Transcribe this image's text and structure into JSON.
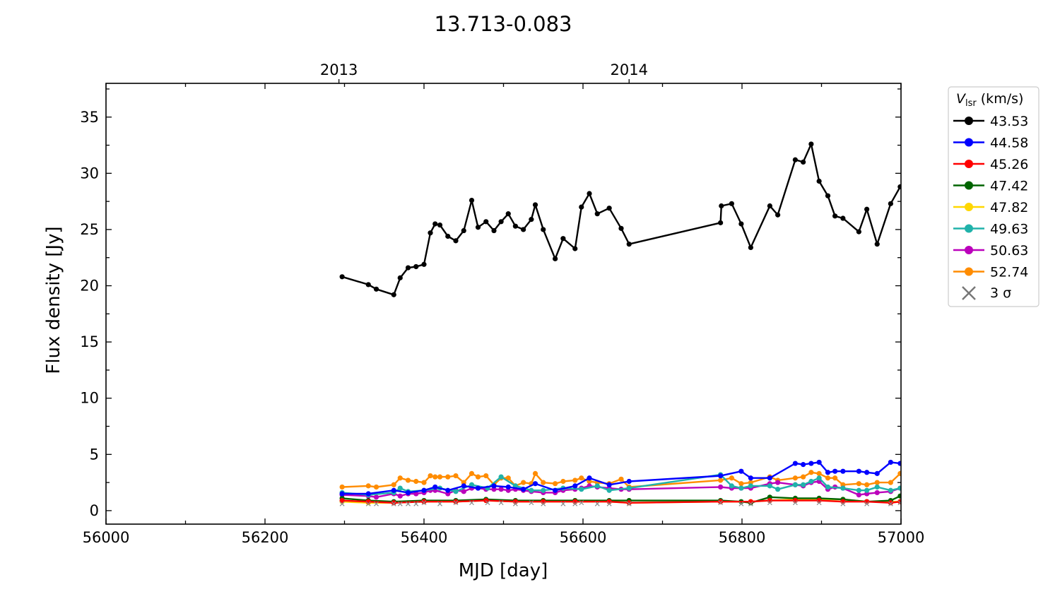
{
  "chart_data": {
    "type": "line",
    "title": "13.713-0.083",
    "xlabel": "MJD [day]",
    "ylabel": "Flux density [Jy]",
    "xlim": [
      56000,
      57000
    ],
    "ylim": [
      -1.2,
      38
    ],
    "x_ticks": [
      56000,
      56200,
      56400,
      56600,
      56800,
      57000
    ],
    "y_ticks": [
      0,
      5,
      10,
      15,
      20,
      25,
      30,
      35
    ],
    "top_axis_ticks": [
      {
        "label": "2013",
        "mjd": 56293
      },
      {
        "label": "2014",
        "mjd": 56658
      }
    ],
    "grid": false,
    "legend": {
      "title_main": "V",
      "title_sub": "lsr",
      "title_unit": " (km/s)",
      "placement": "outside right",
      "sigma_label": "3 σ"
    },
    "series": [
      {
        "name": "43.53",
        "color": "#000000",
        "x": [
          56297,
          56330,
          56340,
          56362,
          56370,
          56380,
          56390,
          56400,
          56408,
          56414,
          56420,
          56430,
          56440,
          56450,
          56460,
          56468,
          56478,
          56488,
          56497,
          56506,
          56515,
          56525,
          56535,
          56540,
          56550,
          56565,
          56575,
          56590,
          56598,
          56608,
          56618,
          56633,
          56648,
          56658,
          56773,
          56774,
          56787,
          56799,
          56811,
          56835,
          56845,
          56867,
          56877,
          56887,
          56897,
          56908,
          56917,
          56927,
          56947,
          56957,
          56970,
          56987,
          56999
        ],
        "y": [
          20.8,
          20.1,
          19.7,
          19.2,
          20.7,
          21.6,
          21.7,
          21.9,
          24.7,
          25.5,
          25.4,
          24.4,
          24.0,
          24.9,
          27.6,
          25.2,
          25.7,
          24.9,
          25.7,
          26.4,
          25.3,
          25.0,
          25.9,
          27.2,
          25.0,
          22.4,
          24.2,
          23.3,
          27.0,
          28.2,
          26.4,
          26.9,
          25.1,
          23.7,
          25.6,
          27.1,
          27.3,
          25.5,
          23.4,
          27.1,
          26.3,
          31.2,
          31.0,
          32.6,
          29.3,
          28.0,
          26.2,
          26.0,
          24.8,
          26.8,
          23.7,
          27.3,
          28.8
        ]
      },
      {
        "name": "44.58",
        "color": "#0000ff",
        "x": [
          56297,
          56330,
          56362,
          56380,
          56400,
          56414,
          56430,
          56450,
          56468,
          56488,
          56506,
          56525,
          56540,
          56565,
          56590,
          56608,
          56633,
          56658,
          56773,
          56799,
          56811,
          56835,
          56867,
          56877,
          56887,
          56897,
          56908,
          56917,
          56927,
          56947,
          56957,
          56970,
          56987,
          56999
        ],
        "y": [
          1.5,
          1.5,
          1.8,
          1.6,
          1.8,
          2.1,
          1.8,
          2.2,
          2.0,
          2.2,
          2.1,
          1.9,
          2.4,
          1.8,
          2.2,
          2.9,
          2.3,
          2.6,
          3.1,
          3.5,
          2.9,
          2.9,
          4.2,
          4.1,
          4.2,
          4.3,
          3.4,
          3.5,
          3.5,
          3.5,
          3.4,
          3.3,
          4.3,
          4.2
        ]
      },
      {
        "name": "45.26",
        "color": "#ff0000",
        "x": [
          56297,
          56330,
          56362,
          56400,
          56440,
          56478,
          56515,
          56550,
          56590,
          56633,
          56658,
          56773,
          56811,
          56835,
          56867,
          56897,
          56927,
          56957,
          56987,
          56999
        ],
        "y": [
          0.9,
          0.8,
          0.7,
          0.8,
          0.8,
          0.9,
          0.8,
          0.8,
          0.8,
          0.8,
          0.7,
          0.8,
          0.8,
          0.9,
          0.9,
          0.9,
          0.8,
          0.8,
          0.7,
          0.8
        ]
      },
      {
        "name": "47.42",
        "color": "#006400",
        "x": [
          56297,
          56330,
          56362,
          56400,
          56440,
          56478,
          56515,
          56550,
          56590,
          56633,
          56658,
          56773,
          56799,
          56811,
          56835,
          56867,
          56897,
          56927,
          56957,
          56987,
          56999
        ],
        "y": [
          1.1,
          0.9,
          0.8,
          0.9,
          0.9,
          1.0,
          0.9,
          0.9,
          0.9,
          0.9,
          0.9,
          0.9,
          0.8,
          0.7,
          1.2,
          1.1,
          1.1,
          1.0,
          0.8,
          0.9,
          1.3
        ]
      },
      {
        "name": "47.82",
        "color": "#ffd700",
        "x": [
          56297,
          56330,
          56362,
          56400,
          56440,
          56478,
          56515,
          56550,
          56590,
          56633,
          56658,
          56773,
          56811,
          56835,
          56867,
          56897,
          56927,
          56957,
          56987,
          56999
        ],
        "y": [
          0.8,
          0.7,
          0.7,
          0.8,
          0.8,
          0.9,
          0.8,
          0.8,
          0.8,
          0.8,
          0.7,
          0.8,
          0.8,
          0.9,
          1.0,
          1.0,
          1.0,
          0.8,
          0.8,
          0.8
        ]
      },
      {
        "name": "49.63",
        "color": "#20b2aa",
        "x": [
          56297,
          56330,
          56362,
          56370,
          56380,
          56400,
          56420,
          56440,
          56460,
          56480,
          56497,
          56515,
          56535,
          56550,
          56575,
          56598,
          56618,
          56633,
          56658,
          56773,
          56787,
          56799,
          56811,
          56835,
          56845,
          56867,
          56877,
          56887,
          56897,
          56908,
          56927,
          56947,
          56957,
          56970,
          56987,
          56999
        ],
        "y": [
          1.6,
          1.4,
          1.6,
          2.0,
          1.7,
          1.8,
          2.0,
          1.7,
          2.3,
          2.0,
          3.0,
          2.2,
          1.8,
          1.8,
          2.0,
          1.9,
          2.2,
          1.8,
          2.0,
          3.2,
          2.2,
          2.0,
          2.2,
          2.2,
          1.9,
          2.3,
          2.3,
          2.6,
          2.9,
          2.1,
          2.0,
          1.8,
          1.8,
          2.1,
          1.8,
          2.0
        ]
      },
      {
        "name": "50.63",
        "color": "#bb00bb",
        "x": [
          56297,
          56330,
          56340,
          56362,
          56370,
          56380,
          56390,
          56400,
          56408,
          56414,
          56430,
          56440,
          56450,
          56460,
          56468,
          56478,
          56488,
          56497,
          56506,
          56515,
          56525,
          56535,
          56550,
          56565,
          56575,
          56590,
          56598,
          56608,
          56618,
          56633,
          56648,
          56658,
          56773,
          56787,
          56799,
          56811,
          56835,
          56845,
          56867,
          56877,
          56887,
          56897,
          56908,
          56917,
          56927,
          56947,
          56957,
          56970,
          56987,
          56999
        ],
        "y": [
          1.4,
          1.3,
          1.2,
          1.5,
          1.3,
          1.5,
          1.5,
          1.6,
          1.8,
          1.8,
          1.5,
          1.8,
          1.7,
          2.0,
          2.0,
          1.9,
          1.9,
          1.9,
          1.8,
          1.9,
          1.8,
          1.7,
          1.6,
          1.6,
          1.8,
          1.9,
          2.0,
          2.2,
          2.1,
          2.0,
          1.9,
          1.9,
          2.1,
          2.0,
          2.0,
          2.0,
          2.4,
          2.5,
          2.3,
          2.2,
          2.5,
          2.6,
          1.9,
          2.1,
          2.0,
          1.4,
          1.5,
          1.6,
          1.7,
          2.0
        ]
      },
      {
        "name": "52.74",
        "color": "#ff8c00",
        "x": [
          56297,
          56330,
          56340,
          56362,
          56370,
          56380,
          56390,
          56400,
          56408,
          56414,
          56420,
          56430,
          56440,
          56450,
          56460,
          56468,
          56478,
          56488,
          56497,
          56506,
          56515,
          56525,
          56535,
          56540,
          56550,
          56565,
          56575,
          56590,
          56598,
          56608,
          56618,
          56633,
          56648,
          56658,
          56773,
          56787,
          56799,
          56811,
          56835,
          56845,
          56867,
          56877,
          56887,
          56897,
          56908,
          56917,
          56927,
          56947,
          56957,
          56970,
          56987,
          56999
        ],
        "y": [
          2.1,
          2.2,
          2.1,
          2.3,
          2.9,
          2.7,
          2.6,
          2.5,
          3.1,
          3.0,
          3.0,
          3.0,
          3.1,
          2.5,
          3.3,
          3.0,
          3.1,
          2.3,
          2.9,
          2.9,
          2.2,
          2.5,
          2.4,
          3.3,
          2.5,
          2.4,
          2.6,
          2.7,
          2.9,
          2.6,
          2.5,
          2.4,
          2.8,
          2.1,
          2.7,
          2.9,
          2.4,
          2.5,
          3.0,
          2.7,
          2.9,
          3.0,
          3.4,
          3.3,
          2.9,
          2.9,
          2.3,
          2.4,
          2.3,
          2.5,
          2.5,
          3.3
        ]
      }
    ],
    "sigma_x": [
      56297,
      56330,
      56340,
      56362,
      56370,
      56380,
      56390,
      56400,
      56420,
      56440,
      56460,
      56480,
      56497,
      56515,
      56535,
      56550,
      56575,
      56590,
      56598,
      56618,
      56633,
      56658,
      56773,
      56799,
      56811,
      56835,
      56867,
      56897,
      56927,
      56957,
      56987,
      56999
    ],
    "sigma_y": [
      0.6,
      0.6,
      0.6,
      0.6,
      0.6,
      0.6,
      0.6,
      0.7,
      0.6,
      0.7,
      0.7,
      0.7,
      0.7,
      0.6,
      0.7,
      0.6,
      0.6,
      0.6,
      0.7,
      0.6,
      0.6,
      0.6,
      0.7,
      0.6,
      0.6,
      0.7,
      0.7,
      0.7,
      0.6,
      0.6,
      0.6,
      0.7
    ]
  }
}
